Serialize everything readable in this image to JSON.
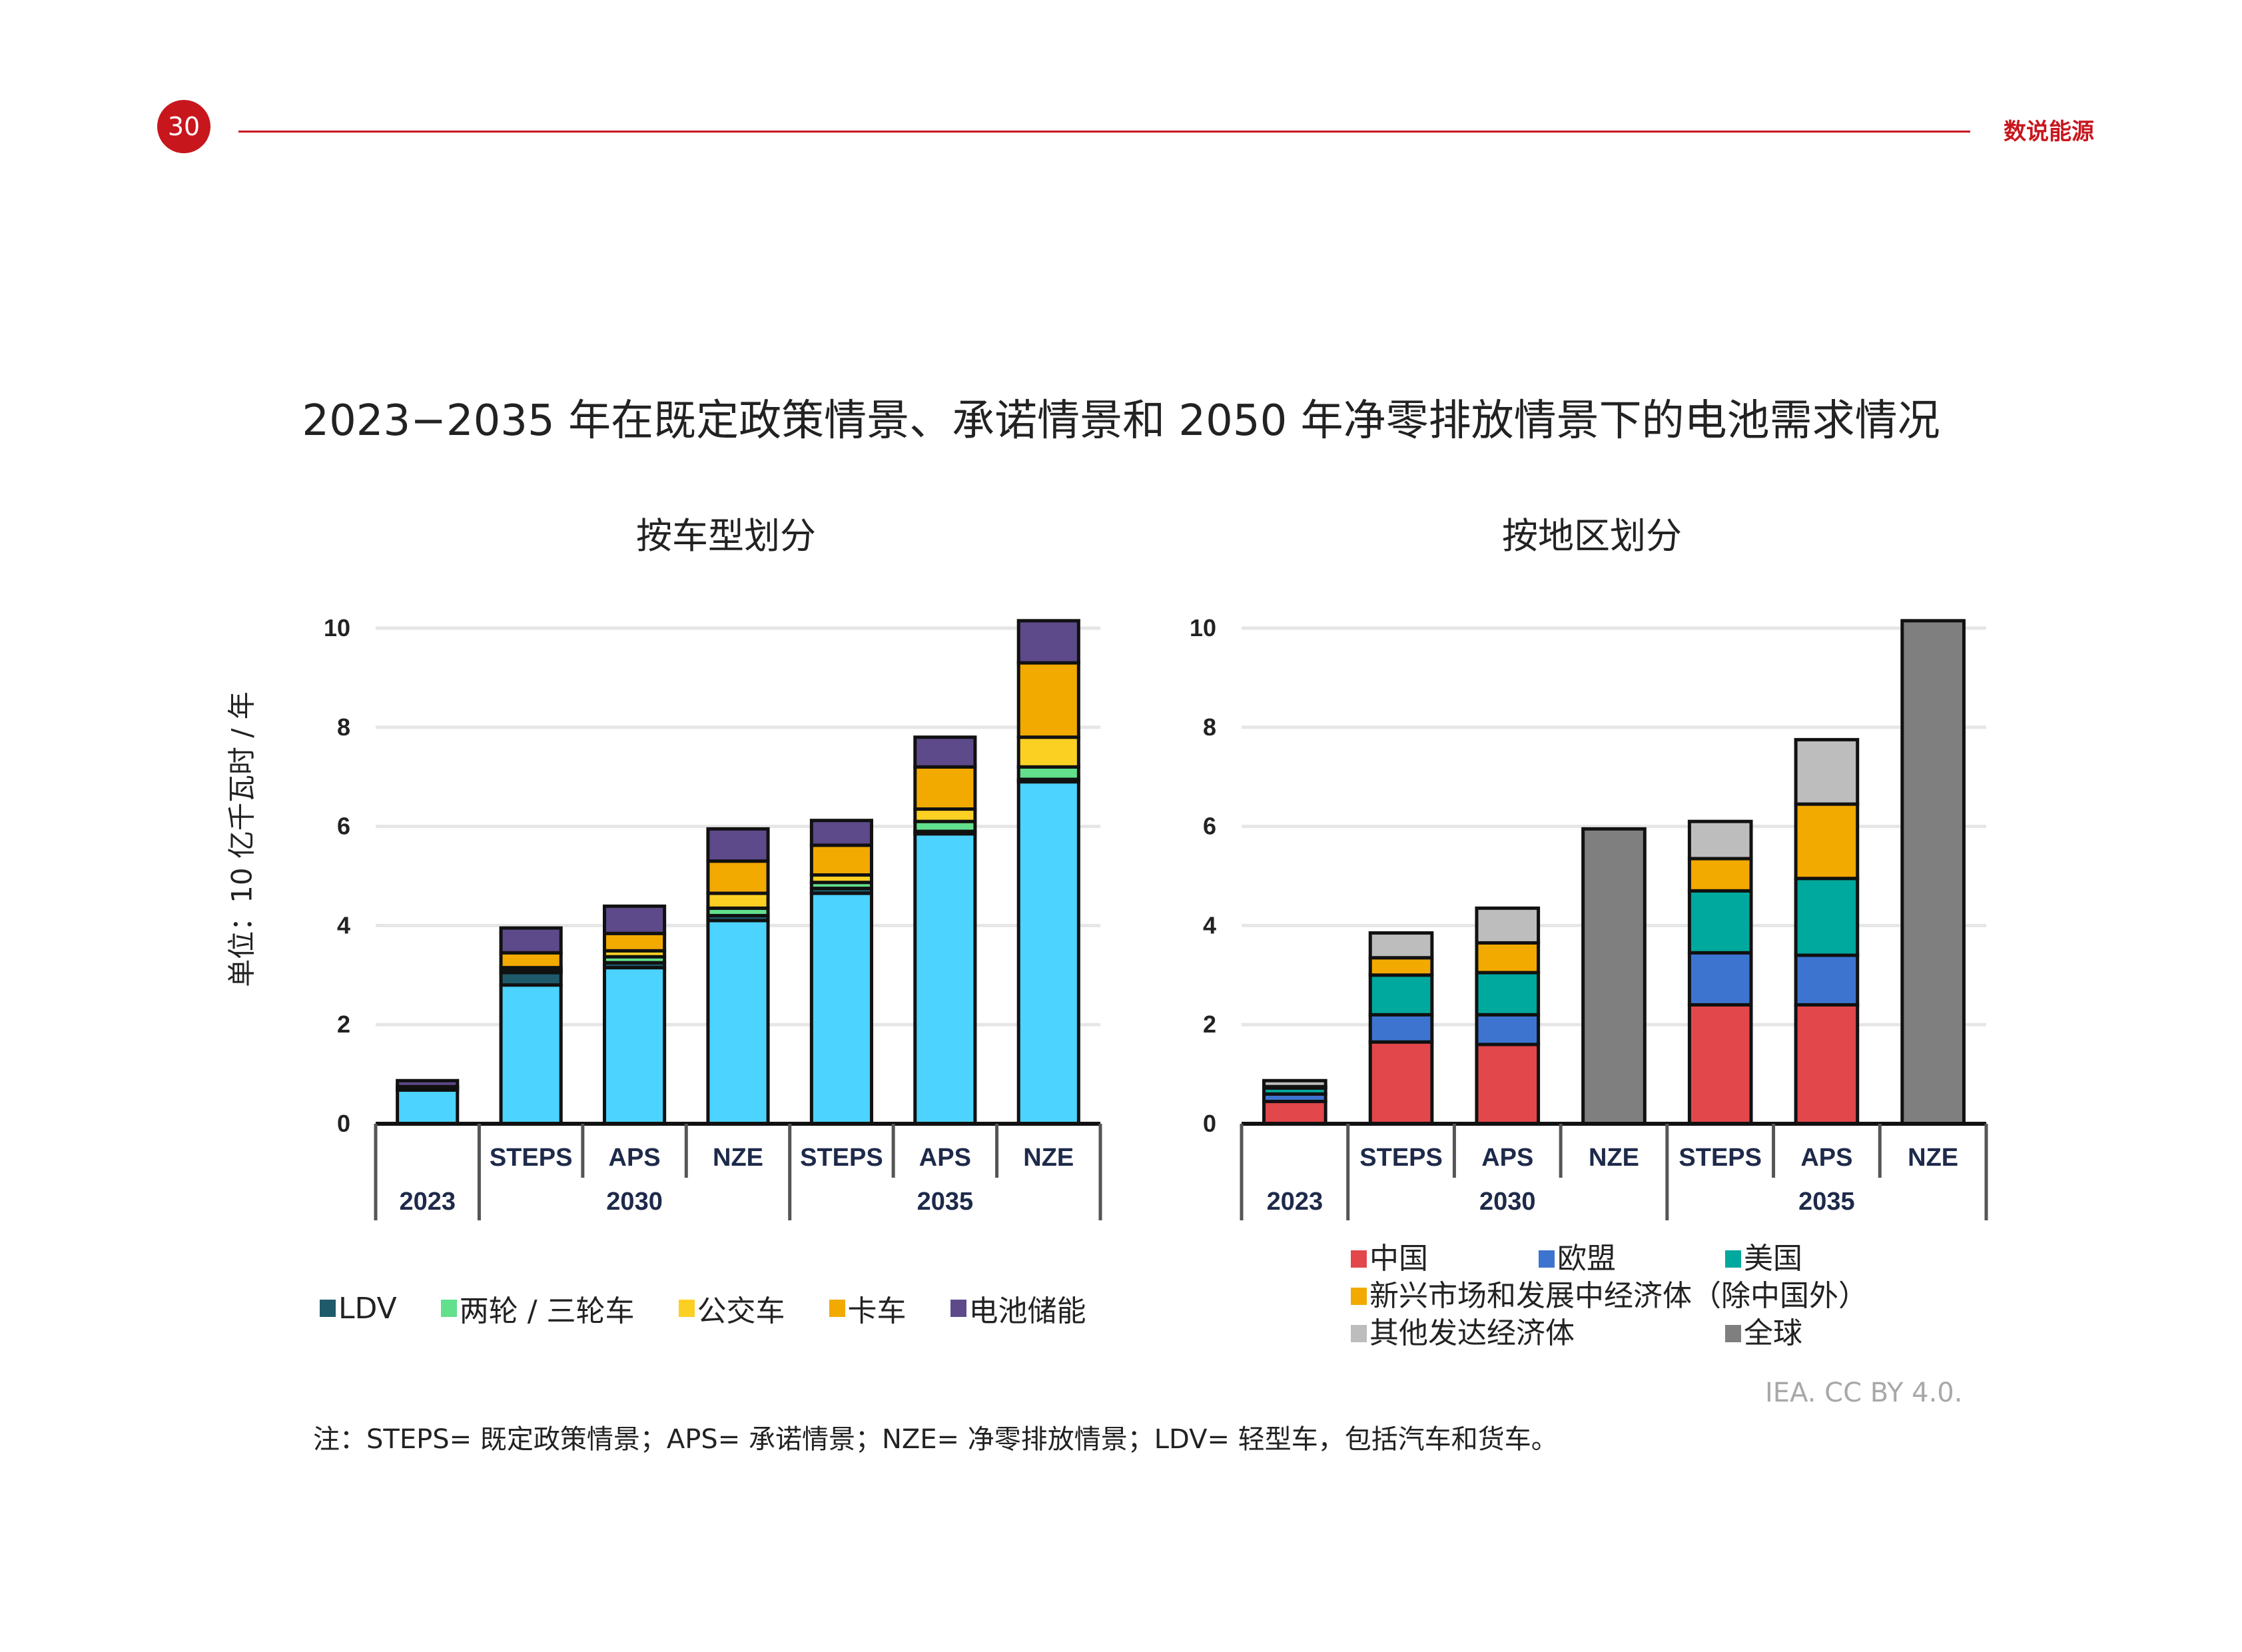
{
  "header": {
    "page_number": "30",
    "brand": "数说能源"
  },
  "title": "2023−2035 年在既定政策情景、承诺情景和 2050 年净零排放情景下的电池需求情况",
  "y_axis_label": "单位：10 亿千瓦时 / 年",
  "chart_data": [
    {
      "type": "bar",
      "stacked": true,
      "title": "按车型划分",
      "ylabel": "单位：10 亿千瓦时 / 年",
      "ylim": [
        0,
        10
      ],
      "yticks": [
        "0",
        "2",
        "4",
        "6",
        "8",
        "10"
      ],
      "grid": true,
      "legend_position": "bottom",
      "categories": [
        "2023",
        "STEPS 2030",
        "APS 2030",
        "NZE 2030",
        "STEPS 2035",
        "APS 2035",
        "NZE 2035"
      ],
      "category_labels": [
        "",
        "STEPS",
        "APS",
        "NZE",
        "STEPS",
        "APS",
        "NZE"
      ],
      "groups": [
        {
          "label": "2023",
          "span": 1
        },
        {
          "label": "2030",
          "span": 3
        },
        {
          "label": "2035",
          "span": 3
        }
      ],
      "series": [
        {
          "name": "LDV",
          "color": "#1f5a6b",
          "values": [
            0.05,
            0.25,
            0.1,
            0.1,
            0.1,
            0.05,
            0.05
          ]
        },
        {
          "name": "两轮 / 三轮车",
          "color": "#62e08d",
          "values": [
            0.0,
            0.05,
            0.12,
            0.15,
            0.12,
            0.2,
            0.25
          ]
        },
        {
          "name": "公交车",
          "color": "#fcd023",
          "values": [
            0.0,
            0.05,
            0.12,
            0.3,
            0.15,
            0.25,
            0.6
          ]
        },
        {
          "name": "卡车",
          "color": "#f2a900",
          "values": [
            0.02,
            0.3,
            0.35,
            0.65,
            0.6,
            0.85,
            1.5
          ]
        },
        {
          "name": "电池储能",
          "color": "#5d4a8a",
          "values": [
            0.12,
            0.5,
            0.55,
            0.65,
            0.5,
            0.6,
            0.85
          ]
        }
      ],
      "base_series": {
        "name": "LDV (轻型车主体)",
        "color": "#4cd3ff",
        "values": [
          0.68,
          2.8,
          3.15,
          4.1,
          4.65,
          5.85,
          6.9
        ]
      },
      "totals": [
        0.87,
        3.95,
        4.39,
        5.95,
        6.12,
        7.8,
        10.15
      ]
    },
    {
      "type": "bar",
      "stacked": true,
      "title": "按地区划分",
      "ylim": [
        0,
        10
      ],
      "yticks": [
        "0",
        "2",
        "4",
        "6",
        "8",
        "10"
      ],
      "grid": true,
      "legend_position": "bottom",
      "categories": [
        "2023",
        "STEPS 2030",
        "APS 2030",
        "NZE 2030",
        "STEPS 2035",
        "APS 2035",
        "NZE 2035"
      ],
      "category_labels": [
        "",
        "STEPS",
        "APS",
        "NZE",
        "STEPS",
        "APS",
        "NZE"
      ],
      "groups": [
        {
          "label": "2023",
          "span": 1
        },
        {
          "label": "2030",
          "span": 3
        },
        {
          "label": "2035",
          "span": 3
        }
      ],
      "series": [
        {
          "name": "中国",
          "color": "#e2474b",
          "values": [
            0.45,
            1.65,
            1.6,
            0,
            2.4,
            2.4,
            0
          ]
        },
        {
          "name": "欧盟",
          "color": "#3d74d0",
          "values": [
            0.15,
            0.55,
            0.6,
            0,
            1.05,
            1.0,
            0
          ]
        },
        {
          "name": "美国",
          "color": "#00a99d",
          "values": [
            0.12,
            0.8,
            0.85,
            0,
            1.25,
            1.55,
            0
          ]
        },
        {
          "name": "新兴市场和发展中经济体（除中国外）",
          "color": "#f2a900",
          "values": [
            0.03,
            0.35,
            0.6,
            0,
            0.65,
            1.5,
            0
          ]
        },
        {
          "name": "其他发达经济体",
          "color": "#bdbdbd",
          "values": [
            0.12,
            0.5,
            0.7,
            0,
            0.75,
            1.3,
            0
          ]
        },
        {
          "name": "全球",
          "color": "#7f7f7f",
          "values": [
            0,
            0,
            0,
            5.95,
            0,
            0,
            10.15
          ]
        }
      ],
      "totals": [
        0.87,
        3.85,
        4.35,
        5.95,
        6.1,
        7.75,
        10.15
      ]
    }
  ],
  "legend_left": [
    {
      "label": "LDV",
      "color": "#1f5a6b"
    },
    {
      "label": "两轮 / 三轮车",
      "color": "#62e08d"
    },
    {
      "label": "公交车",
      "color": "#fcd023"
    },
    {
      "label": "卡车",
      "color": "#f2a900"
    },
    {
      "label": "电池储能",
      "color": "#5d4a8a"
    }
  ],
  "legend_right": [
    {
      "label": "中国",
      "color": "#e2474b"
    },
    {
      "label": "欧盟",
      "color": "#3d74d0"
    },
    {
      "label": "美国",
      "color": "#00a99d"
    },
    {
      "label": "新兴市场和发展中经济体（除中国外）",
      "color": "#f2a900"
    },
    {
      "label": "其他发达经济体",
      "color": "#bdbdbd"
    },
    {
      "label": "全球",
      "color": "#7f7f7f"
    }
  ],
  "credit": "IEA. CC BY 4.0.",
  "note": "注：STEPS= 既定政策情景；APS= 承诺情景；NZE= 净零排放情景；LDV= 轻型车，包括汽车和货车。"
}
